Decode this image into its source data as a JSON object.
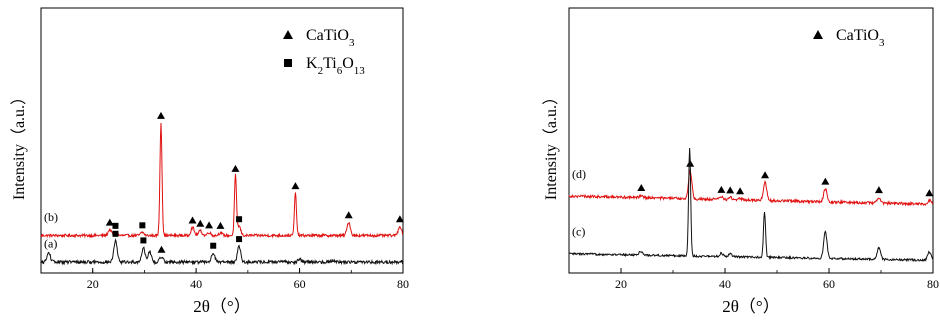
{
  "chart_data": [
    {
      "type": "line",
      "panel": "left",
      "xlabel": "2θ（°）",
      "ylabel": "Intensity（a.u.）",
      "xlim": [
        10,
        80
      ],
      "x_ticks": [
        "20",
        "40",
        "60",
        "80"
      ],
      "x_tick_values": [
        20,
        40,
        60,
        80
      ],
      "y_ticks": "none",
      "grid": false,
      "legend_position": "top-right",
      "legend": [
        {
          "marker": "triangle",
          "label": "CaTiO",
          "subscript": "3"
        },
        {
          "marker": "square",
          "label_parts": [
            "K",
            "2",
            "Ti",
            "6",
            "O",
            "13"
          ]
        }
      ],
      "series": [
        {
          "name": "(b)",
          "color": "#e01010",
          "baseline": 1.0,
          "noise": 0.05,
          "peaks": [
            {
              "x": 23.3,
              "h": 0.22
            },
            {
              "x": 24.4,
              "h": 0.1
            },
            {
              "x": 29.6,
              "h": 0.12
            },
            {
              "x": 33.2,
              "h": 4.25
            },
            {
              "x": 39.3,
              "h": 0.3
            },
            {
              "x": 40.8,
              "h": 0.18
            },
            {
              "x": 42.5,
              "h": 0.12
            },
            {
              "x": 44.7,
              "h": 0.1
            },
            {
              "x": 47.6,
              "h": 2.25
            },
            {
              "x": 48.3,
              "h": 0.35
            },
            {
              "x": 59.2,
              "h": 1.6
            },
            {
              "x": 69.5,
              "h": 0.5
            },
            {
              "x": 79.4,
              "h": 0.35
            }
          ],
          "triangle_markers": [
            23.3,
            33.2,
            39.3,
            40.8,
            42.5,
            44.7,
            47.6,
            59.2,
            69.5,
            79.4
          ],
          "square_markers": [
            24.4,
            29.6,
            48.3
          ]
        },
        {
          "name": "(a)",
          "color": "#111111",
          "baseline": 0.0,
          "noise": 0.06,
          "peaks": [
            {
              "x": 11.5,
              "h": 0.35
            },
            {
              "x": 24.4,
              "h": 0.8
            },
            {
              "x": 29.8,
              "h": 0.55
            },
            {
              "x": 31.0,
              "h": 0.4
            },
            {
              "x": 33.3,
              "h": 0.2
            },
            {
              "x": 43.3,
              "h": 0.35
            },
            {
              "x": 48.3,
              "h": 0.6
            },
            {
              "x": 60.0,
              "h": 0.12
            },
            {
              "x": 66.5,
              "h": 0.08
            }
          ],
          "triangle_markers": [
            33.3
          ],
          "square_markers": [
            24.4,
            29.8,
            43.3,
            48.3
          ]
        }
      ]
    },
    {
      "type": "line",
      "panel": "right",
      "xlabel": "2θ（°）",
      "ylabel": "Intensity（a.u.）",
      "xlim": [
        10,
        80
      ],
      "x_ticks": [
        "20",
        "40",
        "60",
        "80"
      ],
      "x_tick_values": [
        20,
        40,
        60,
        80
      ],
      "y_ticks": "none",
      "grid": false,
      "legend_position": "top-right",
      "legend": [
        {
          "marker": "triangle",
          "label": "CaTiO",
          "subscript": "3"
        }
      ],
      "series": [
        {
          "name": "(d)",
          "color": "#e01010",
          "baseline": 2.0,
          "baseline_slope": -0.25,
          "noise": 0.04,
          "peaks": [
            {
              "x": 23.9,
              "h": 0.08
            },
            {
              "x": 33.3,
              "h": 0.85
            },
            {
              "x": 39.3,
              "h": 0.08
            },
            {
              "x": 41.0,
              "h": 0.07
            },
            {
              "x": 42.9,
              "h": 0.05
            },
            {
              "x": 47.7,
              "h": 0.55
            },
            {
              "x": 59.3,
              "h": 0.4
            },
            {
              "x": 69.6,
              "h": 0.18
            },
            {
              "x": 79.3,
              "h": 0.12
            }
          ],
          "triangle_markers": [
            23.9,
            33.3,
            39.3,
            41.0,
            42.9,
            47.7,
            59.3,
            69.6,
            79.3
          ]
        },
        {
          "name": "(c)",
          "color": "#111111",
          "baseline": 0.25,
          "baseline_slope": -0.2,
          "noise": 0.03,
          "peaks": [
            {
              "x": 23.8,
              "h": 0.12
            },
            {
              "x": 33.2,
              "h": 3.3
            },
            {
              "x": 39.3,
              "h": 0.1
            },
            {
              "x": 41.0,
              "h": 0.08
            },
            {
              "x": 47.6,
              "h": 1.4
            },
            {
              "x": 59.3,
              "h": 0.8
            },
            {
              "x": 69.6,
              "h": 0.35
            },
            {
              "x": 79.3,
              "h": 0.25
            }
          ],
          "triangle_markers": []
        }
      ]
    }
  ]
}
